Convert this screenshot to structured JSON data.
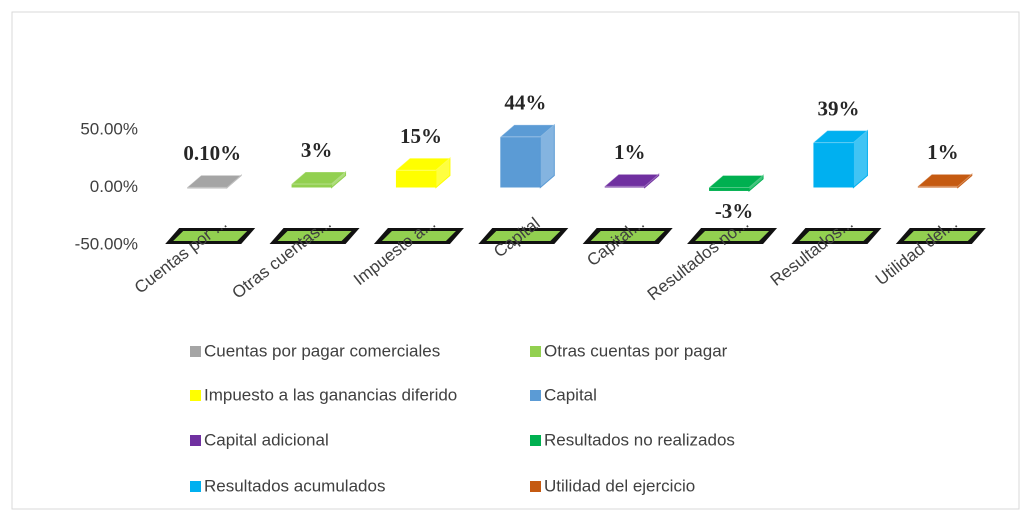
{
  "chart_data": {
    "type": "bar3d",
    "categories": [
      "Cuentas por ...",
      "Otras cuentas...",
      "Impuesto a...",
      "Capital",
      "Capital...",
      "Resultados no...",
      "Resultados...",
      "Utilidad del..."
    ],
    "values": [
      0.1,
      3,
      15,
      44,
      1,
      -3,
      39,
      1
    ],
    "value_labels": [
      "0.10%",
      "3%",
      "15%",
      "44%",
      "1%",
      "-3%",
      "39%",
      "1%"
    ],
    "colors": [
      "#a5a5a5",
      "#92d050",
      "#ffff00",
      "#5b9bd5",
      "#7030a0",
      "#00b050",
      "#00b0f0",
      "#c55a11"
    ],
    "legend": [
      "Cuentas por pagar comerciales",
      "Otras cuentas por pagar",
      "Impuesto a las ganancias diferido",
      "Capital",
      "Capital adicional",
      "Resultados no realizados",
      "Resultados acumulados",
      "Utilidad del ejercicio"
    ],
    "ylim": [
      -50,
      50
    ],
    "yticks": [
      {
        "value": 50,
        "label": "50.00%"
      },
      {
        "value": 0,
        "label": "0.00%"
      },
      {
        "value": -50,
        "label": "-50.00%"
      }
    ]
  }
}
